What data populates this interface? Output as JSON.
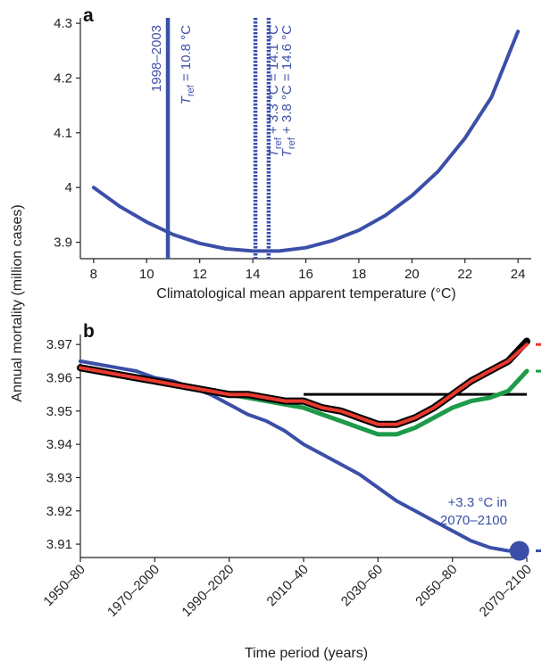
{
  "ylabel_shared": "Annual mortality (million cases)",
  "colors": {
    "blue": "#3b4fa8",
    "black": "#000000",
    "red": "#e8382f",
    "green": "#1e9a4a",
    "axis": "#222222"
  },
  "chart_data": [
    {
      "panel": "a",
      "type": "line",
      "title": "",
      "xlabel": "Climatological mean apparent temperature (°C)",
      "ylabel": "",
      "xlim": [
        7.5,
        24.5
      ],
      "ylim": [
        3.87,
        4.31
      ],
      "xticks": [
        8,
        10,
        12,
        14,
        16,
        18,
        20,
        22,
        24
      ],
      "yticks": [
        3.9,
        4,
        4.1,
        4.2,
        4.3
      ],
      "ytick_labels": [
        "3.9",
        "4",
        "4.1",
        "4.2",
        "4.3"
      ],
      "grid": false,
      "series": [
        {
          "color": "#3b4fa8",
          "x": [
            8,
            9,
            10,
            11,
            12,
            13,
            14,
            15,
            16,
            17,
            18,
            19,
            20,
            21,
            22,
            23,
            24
          ],
          "y": [
            4.0,
            3.965,
            3.937,
            3.914,
            3.898,
            3.888,
            3.884,
            3.884,
            3.89,
            3.903,
            3.922,
            3.949,
            3.985,
            4.03,
            4.09,
            4.165,
            4.285
          ]
        }
      ],
      "reference_lines": [
        {
          "x": 10.8,
          "style": "solid",
          "period": "1998–2003",
          "sym": "T",
          "sub": "ref",
          "text": " = 10.8 °C"
        },
        {
          "x": 14.1,
          "style": "dotted",
          "sym": "T",
          "sub": "ref",
          "text": " + 3.3 °C = 14.1 °C"
        },
        {
          "x": 14.6,
          "style": "dotted",
          "sym": "T",
          "sub": "ref",
          "text": " + 3.8 °C = 14.6 °C"
        }
      ]
    },
    {
      "panel": "b",
      "type": "line",
      "title": "",
      "xlabel": "Time period (years)",
      "ylabel": "",
      "xlim": [
        1950,
        2070
      ],
      "ylim": [
        3.906,
        3.973
      ],
      "xticks": [
        1950,
        1970,
        1990,
        2010,
        2030,
        2050,
        2070
      ],
      "xtick_labels": [
        "1950–80",
        "1970–2000",
        "1990–2020",
        "2010–40",
        "2030–60",
        "2050–80",
        "2070–2100"
      ],
      "yticks": [
        3.91,
        3.92,
        3.93,
        3.94,
        3.95,
        3.96,
        3.97
      ],
      "grid": false,
      "baseline": {
        "y": 3.955,
        "x_start": 2010,
        "x_end": 2070,
        "color": "#000000"
      },
      "series": [
        {
          "color": "#3b4fa8",
          "x": [
            1950,
            1955,
            1960,
            1965,
            1970,
            1975,
            1980,
            1985,
            1990,
            1995,
            2000,
            2005,
            2010,
            2015,
            2020,
            2025,
            2030,
            2035,
            2040,
            2045,
            2050,
            2055,
            2060,
            2065,
            2068
          ],
          "y": [
            3.965,
            3.964,
            3.963,
            3.962,
            3.96,
            3.959,
            3.957,
            3.955,
            3.952,
            3.949,
            3.947,
            3.944,
            3.94,
            3.937,
            3.934,
            3.931,
            3.927,
            3.923,
            3.92,
            3.917,
            3.914,
            3.911,
            3.909,
            3.908,
            3.908
          ]
        },
        {
          "color": "#1e9a4a",
          "x": [
            1950,
            1955,
            1960,
            1965,
            1970,
            1975,
            1980,
            1985,
            1990,
            1995,
            2000,
            2005,
            2010,
            2015,
            2020,
            2025,
            2030,
            2035,
            2040,
            2045,
            2050,
            2055,
            2060,
            2065,
            2070
          ],
          "y": [
            3.963,
            3.962,
            3.961,
            3.96,
            3.959,
            3.958,
            3.957,
            3.956,
            3.955,
            3.954,
            3.953,
            3.952,
            3.951,
            3.949,
            3.947,
            3.945,
            3.943,
            3.943,
            3.945,
            3.948,
            3.951,
            3.953,
            3.954,
            3.956,
            3.962
          ]
        },
        {
          "color": "#000000",
          "x": [
            1950,
            1955,
            1960,
            1965,
            1970,
            1975,
            1980,
            1985,
            1990,
            1995,
            2000,
            2005,
            2010,
            2015,
            2020,
            2025,
            2030,
            2035,
            2040,
            2045,
            2050,
            2055,
            2060,
            2065,
            2070
          ],
          "y": [
            3.963,
            3.962,
            3.961,
            3.96,
            3.959,
            3.958,
            3.957,
            3.956,
            3.955,
            3.955,
            3.954,
            3.953,
            3.953,
            3.951,
            3.95,
            3.948,
            3.946,
            3.946,
            3.948,
            3.951,
            3.955,
            3.959,
            3.962,
            3.965,
            3.971
          ]
        },
        {
          "color": "#e8382f",
          "x": [
            1950,
            1955,
            1960,
            1965,
            1970,
            1975,
            1980,
            1985,
            1990,
            1995,
            2000,
            2005,
            2010,
            2015,
            2020,
            2025,
            2030,
            2035,
            2040,
            2045,
            2050,
            2055,
            2060,
            2065,
            2070
          ],
          "y": [
            3.963,
            3.962,
            3.961,
            3.96,
            3.959,
            3.958,
            3.957,
            3.956,
            3.955,
            3.955,
            3.954,
            3.953,
            3.953,
            3.951,
            3.95,
            3.948,
            3.946,
            3.946,
            3.948,
            3.951,
            3.955,
            3.959,
            3.962,
            3.965,
            3.97
          ]
        }
      ],
      "end_marker": {
        "x": 2068,
        "y": 3.908,
        "color": "#3b4fa8"
      },
      "annotation": {
        "lines": [
          "+3.3 °C in",
          "2070–2100"
        ],
        "color": "#3b4fa8"
      },
      "right_ticks": [
        {
          "y": 3.97,
          "color": "#e8382f"
        },
        {
          "y": 3.962,
          "color": "#1e9a4a"
        },
        {
          "y": 3.908,
          "color": "#3b4fa8"
        }
      ]
    }
  ]
}
